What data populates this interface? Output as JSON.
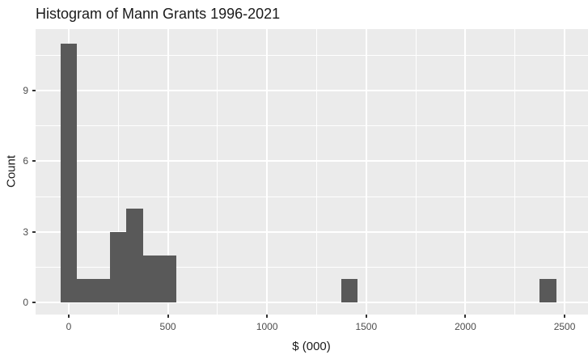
{
  "chart_data": {
    "type": "bar",
    "variant": "histogram",
    "title": "Histogram of Mann Grants 1996-2021",
    "xlabel": "$ (000)",
    "ylabel": "Count",
    "legend": "none",
    "grid": "major+minor",
    "x_ticks": [
      0,
      500,
      1000,
      1500,
      2000,
      2500
    ],
    "x_minor_ticks": [
      250,
      750,
      1250,
      1750,
      2250
    ],
    "y_ticks": [
      0,
      3,
      6,
      9
    ],
    "y_minor_ticks": [
      1.5,
      4.5,
      7.5,
      10.5
    ],
    "x_range": [
      -167,
      2618
    ],
    "y_range": [
      -0.5,
      11.6
    ],
    "binwidth": 83.3,
    "total_count": 26,
    "bins": [
      {
        "x0": -41.7,
        "x1": 41.7,
        "center": 0,
        "count": 11
      },
      {
        "x0": 41.7,
        "x1": 125.0,
        "center": 83,
        "count": 1
      },
      {
        "x0": 125.0,
        "x1": 208.3,
        "center": 167,
        "count": 1
      },
      {
        "x0": 208.3,
        "x1": 291.6,
        "center": 250,
        "count": 3
      },
      {
        "x0": 291.6,
        "x1": 374.9,
        "center": 333,
        "count": 4
      },
      {
        "x0": 374.9,
        "x1": 458.2,
        "center": 417,
        "count": 2
      },
      {
        "x0": 458.2,
        "x1": 541.5,
        "center": 500,
        "count": 2
      },
      {
        "x0": 1374.5,
        "x1": 1457.8,
        "center": 1416,
        "count": 1
      },
      {
        "x0": 2374.1,
        "x1": 2457.4,
        "center": 2416,
        "count": 1
      }
    ]
  },
  "colors": {
    "figure_bg": "#FFFFFF",
    "panel_bg": "#EBEBEB",
    "bar_fill": "#595959",
    "grid_major": "#FFFFFF",
    "grid_minor": "#FFFFFF",
    "axis_text": "#4D4D4D",
    "tick_mark": "#333333",
    "axis_title_text": "#1A1A1A",
    "title_text": "#1A1A1A"
  }
}
